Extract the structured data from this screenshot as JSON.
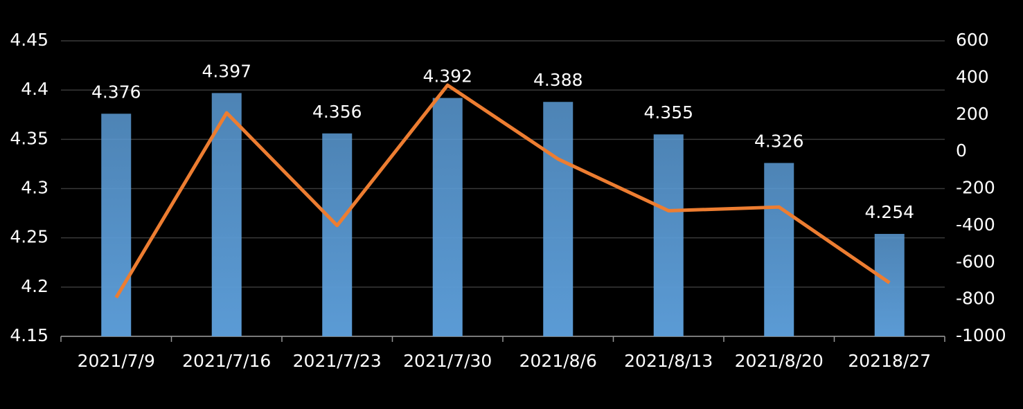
{
  "chart_data": {
    "type": "bar-line",
    "categories": [
      "2021/7/9",
      "2021/7/16",
      "2021/7/23",
      "2021/7/30",
      "2021/8/6",
      "2021/8/13",
      "2021/8/20",
      "20218/27"
    ],
    "series": [
      {
        "type": "bar",
        "color": "#5b9bd5",
        "values": [
          4.376,
          4.397,
          4.356,
          4.392,
          4.388,
          4.355,
          4.326,
          4.254
        ]
      },
      {
        "type": "line",
        "axis": "y2",
        "color": "#ed7d31",
        "values": [
          -790,
          210,
          -400,
          360,
          -40,
          -320,
          -300,
          -710
        ]
      }
    ],
    "ylim": [
      4.15,
      4.45
    ],
    "yticks": [
      4.15,
      4.2,
      4.25,
      4.3,
      4.35,
      4.4,
      4.45
    ],
    "y2lim": [
      -1000,
      600
    ],
    "y2ticks": [
      -1000,
      -800,
      -600,
      -400,
      -200,
      0,
      200,
      400,
      600
    ],
    "grid": true
  }
}
